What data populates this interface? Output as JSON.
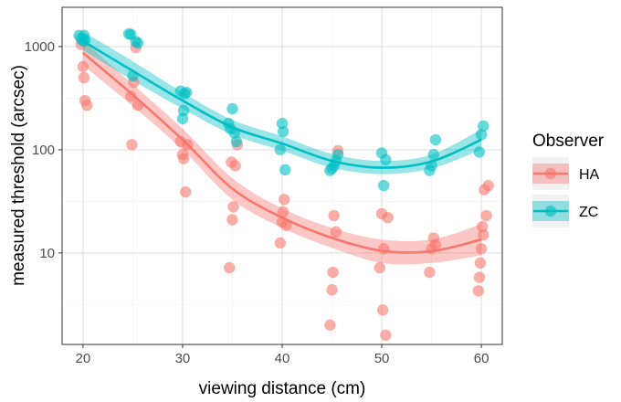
{
  "chart_data": {
    "type": "scatter",
    "xlabel": "viewing distance (cm)",
    "ylabel": "measured threshold (arcsec)",
    "y_scale": "log",
    "xlim": [
      17.9,
      62.1
    ],
    "ylim": [
      1.3,
      2400
    ],
    "x_ticks": [
      20,
      30,
      40,
      50,
      60
    ],
    "x_tick_labels": [
      "20",
      "30",
      "40",
      "50",
      "60"
    ],
    "y_ticks": [
      10,
      100,
      1000
    ],
    "y_tick_labels": [
      "10",
      "100",
      "1000"
    ],
    "grid": true,
    "legend": {
      "title": "Observer",
      "position": "right",
      "entries": [
        "HA",
        "ZC"
      ]
    },
    "series": [
      {
        "name": "HA",
        "color": "#F8766D",
        "points": [
          [
            19.8,
            1050
          ],
          [
            20.0,
            640
          ],
          [
            20.1,
            500
          ],
          [
            20.2,
            300
          ],
          [
            20.4,
            270
          ],
          [
            24.8,
            330
          ],
          [
            24.9,
            112
          ],
          [
            25.1,
            450
          ],
          [
            25.3,
            980
          ],
          [
            25.5,
            270
          ],
          [
            29.8,
            120
          ],
          [
            30.0,
            90
          ],
          [
            30.1,
            82
          ],
          [
            30.3,
            39
          ],
          [
            30.5,
            112
          ],
          [
            34.7,
            7.2
          ],
          [
            34.9,
            76
          ],
          [
            35.0,
            21
          ],
          [
            35.1,
            28
          ],
          [
            35.3,
            70
          ],
          [
            35.5,
            112
          ],
          [
            39.8,
            12.5
          ],
          [
            40.0,
            20
          ],
          [
            40.1,
            25
          ],
          [
            40.2,
            33
          ],
          [
            40.4,
            18.5
          ],
          [
            44.8,
            2.0
          ],
          [
            45.0,
            4.4
          ],
          [
            45.1,
            6.5
          ],
          [
            45.2,
            23
          ],
          [
            45.4,
            16
          ],
          [
            45.6,
            98
          ],
          [
            49.8,
            7.2
          ],
          [
            50.0,
            24
          ],
          [
            50.1,
            2.8
          ],
          [
            50.2,
            11
          ],
          [
            50.4,
            1.6
          ],
          [
            50.6,
            22
          ],
          [
            54.8,
            6.5
          ],
          [
            55.0,
            11
          ],
          [
            55.2,
            14
          ],
          [
            55.4,
            12
          ],
          [
            59.7,
            4.3
          ],
          [
            59.8,
            5.8
          ],
          [
            59.9,
            8
          ],
          [
            60.0,
            11
          ],
          [
            60.1,
            18
          ],
          [
            60.2,
            15
          ],
          [
            60.3,
            41
          ],
          [
            60.5,
            23
          ],
          [
            60.7,
            45
          ]
        ],
        "fit": {
          "x": [
            20,
            25,
            30,
            35,
            40,
            45,
            50,
            55,
            60
          ],
          "y": [
            870,
            340,
            125,
            42,
            22,
            14,
            10.5,
            10.4,
            13.5
          ],
          "ci_lower": [
            660,
            265,
            100,
            33,
            17.5,
            11.2,
            8.0,
            8.0,
            9.5
          ],
          "ci_upper": [
            1150,
            430,
            160,
            53,
            27,
            17.5,
            13.5,
            13.5,
            19
          ]
        }
      },
      {
        "name": "ZC",
        "color": "#00BFC4",
        "points": [
          [
            19.6,
            1280
          ],
          [
            19.8,
            1200
          ],
          [
            20.0,
            1130
          ],
          [
            20.1,
            1280
          ],
          [
            20.2,
            1150
          ],
          [
            24.6,
            1330
          ],
          [
            24.8,
            1310
          ],
          [
            25.0,
            520
          ],
          [
            25.3,
            1120
          ],
          [
            25.5,
            1080
          ],
          [
            29.8,
            370
          ],
          [
            30.0,
            200
          ],
          [
            30.1,
            240
          ],
          [
            30.2,
            350
          ],
          [
            30.4,
            360
          ],
          [
            34.6,
            180
          ],
          [
            34.8,
            160
          ],
          [
            35.0,
            250
          ],
          [
            35.2,
            145
          ],
          [
            35.4,
            120
          ],
          [
            39.8,
            100
          ],
          [
            40.0,
            180
          ],
          [
            40.1,
            150
          ],
          [
            40.3,
            64
          ],
          [
            44.8,
            63
          ],
          [
            45.0,
            66
          ],
          [
            45.2,
            70
          ],
          [
            45.4,
            78
          ],
          [
            45.6,
            90
          ],
          [
            50.0,
            93
          ],
          [
            50.2,
            45
          ],
          [
            50.4,
            80
          ],
          [
            54.8,
            63
          ],
          [
            55.0,
            70
          ],
          [
            55.2,
            90
          ],
          [
            55.4,
            125
          ],
          [
            59.8,
            95
          ],
          [
            60.0,
            140
          ],
          [
            60.2,
            170
          ]
        ],
        "fit": {
          "x": [
            20,
            25,
            30,
            35,
            40,
            45,
            50,
            55,
            60
          ],
          "y": [
            1130,
            580,
            300,
            165,
            115,
            78,
            67,
            77,
            125
          ],
          "ci_lower": [
            920,
            470,
            250,
            140,
            98,
            67,
            58,
            66,
            100
          ],
          "ci_upper": [
            1400,
            720,
            360,
            195,
            135,
            91,
            78,
            90,
            158
          ]
        }
      }
    ]
  }
}
